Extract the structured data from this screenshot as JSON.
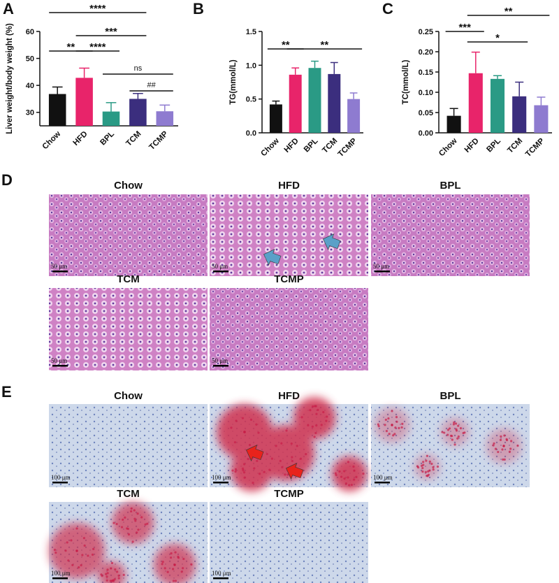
{
  "chart_data": [
    {
      "type": "bar",
      "ylabel": "Liver weight/body weight (%)",
      "categories": [
        "Chow",
        "HFD",
        "BPL",
        "TCM",
        "TCMP"
      ],
      "values": [
        36.8,
        42.8,
        30.3,
        35.0,
        30.4
      ],
      "errors": [
        2.6,
        3.6,
        3.3,
        2.0,
        2.3
      ],
      "colors": [
        "#111111",
        "#e8246a",
        "#2a9a85",
        "#3b2e7e",
        "#8e7bd0"
      ],
      "ylim": [
        25,
        60
      ],
      "yticks": [
        30,
        40,
        50,
        60
      ],
      "annotations": [
        {
          "text": "****",
          "from": 0,
          "to": 3
        },
        {
          "text": "***",
          "from": 1,
          "to": 3
        },
        {
          "text": "**",
          "from": 0,
          "to": 1
        },
        {
          "text": "****",
          "from": 1,
          "to": 2
        },
        {
          "text": "ns",
          "from": 2,
          "to": 4
        },
        {
          "text": "##",
          "from": 3,
          "to": 4
        }
      ]
    },
    {
      "type": "bar",
      "ylabel": "TG(mmol/L)",
      "categories": [
        "Chow",
        "HFD",
        "BPL",
        "TCM",
        "TCMP"
      ],
      "values": [
        0.42,
        0.86,
        0.96,
        0.87,
        0.5
      ],
      "errors": [
        0.05,
        0.1,
        0.1,
        0.17,
        0.09
      ],
      "colors": [
        "#111111",
        "#e8246a",
        "#2a9a85",
        "#3b2e7e",
        "#8e7bd0"
      ],
      "ylim": [
        0,
        1.5
      ],
      "yticks": [
        {
          "value": 0,
          "label": "0.0"
        },
        {
          "value": 0.5,
          "label": "0.5"
        },
        {
          "value": 1,
          "label": "1.0"
        },
        {
          "value": 1.5,
          "label": "1.5"
        }
      ],
      "annotations": [
        {
          "text": "**",
          "from": 0,
          "to": 1
        },
        {
          "text": "**",
          "from": 1,
          "to": 4
        }
      ]
    },
    {
      "type": "bar",
      "ylabel": "TC(mmol/L)",
      "categories": [
        "Chow",
        "HFD",
        "BPL",
        "TCM",
        "TCMP"
      ],
      "values": [
        0.042,
        0.147,
        0.133,
        0.09,
        0.068
      ],
      "errors": [
        0.018,
        0.052,
        0.008,
        0.035,
        0.02
      ],
      "colors": [
        "#111111",
        "#e8246a",
        "#2a9a85",
        "#3b2e7e",
        "#8e7bd0"
      ],
      "ylim": [
        0,
        0.25
      ],
      "yticks": [
        {
          "value": 0,
          "label": "0.00"
        },
        {
          "value": 0.05,
          "label": "0.05"
        },
        {
          "value": 0.1,
          "label": "0.10"
        },
        {
          "value": 0.15,
          "label": "0.15"
        },
        {
          "value": 0.2,
          "label": "0.20"
        },
        {
          "value": 0.25,
          "label": "0.25"
        }
      ],
      "annotations": [
        {
          "text": "**",
          "from": 1,
          "to": 4
        },
        {
          "text": "***",
          "from": 0,
          "to": 1
        },
        {
          "text": "*",
          "from": 1,
          "to": 3
        }
      ]
    }
  ],
  "panel_labels": [
    "A",
    "B",
    "C",
    "D",
    "E"
  ],
  "he_staining": {
    "labels": [
      "Chow",
      "HFD",
      "BPL",
      "TCM",
      "TCMP"
    ],
    "scale_bar": "50 μm"
  },
  "oil_red_staining": {
    "labels": [
      "Chow",
      "HFD",
      "BPL",
      "TCM",
      "TCMP"
    ],
    "scale_bar": "100 μm"
  }
}
